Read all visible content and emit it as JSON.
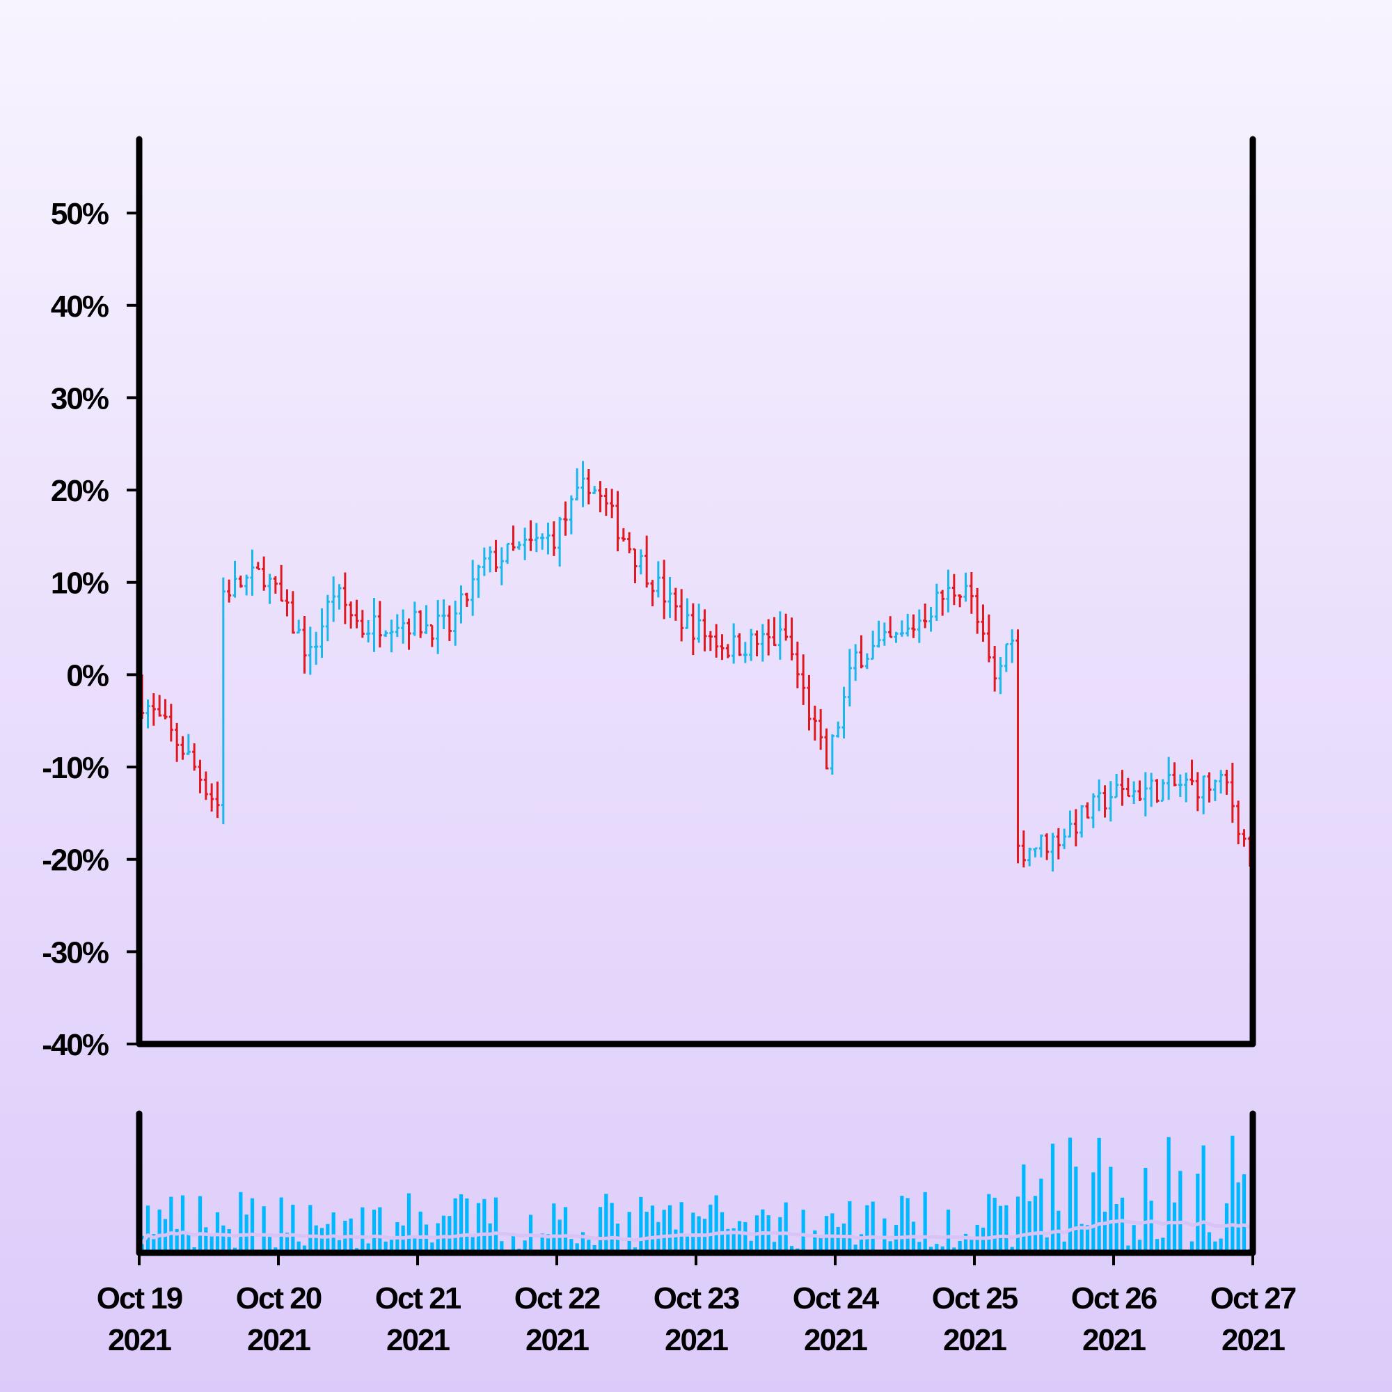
{
  "chart_data": {
    "type": "ohlc",
    "price_axis": {
      "ylim": [
        -40,
        58
      ],
      "ticks": [
        -40,
        -30,
        -20,
        -10,
        0,
        10,
        20,
        30,
        40,
        50
      ],
      "tick_labels": [
        "-40%",
        "-30%",
        "-20%",
        "-10%",
        "0%",
        "10%",
        "20%",
        "30%",
        "40%",
        "50%"
      ]
    },
    "date_axis": {
      "range": [
        "2021-10-19 00:00",
        "2021-10-27 00:00"
      ],
      "ticks": [
        "2021-10-19",
        "2021-10-20",
        "2021-10-21",
        "2021-10-22",
        "2021-10-23",
        "2021-10-24",
        "2021-10-25",
        "2021-10-26",
        "2021-10-27"
      ],
      "tick_labels": [
        [
          "Oct 19",
          "2021"
        ],
        [
          "Oct 20",
          "2021"
        ],
        [
          "Oct 21",
          "2021"
        ],
        [
          "Oct 22",
          "2021"
        ],
        [
          "Oct 23",
          "2021"
        ],
        [
          "Oct 24",
          "2021"
        ],
        [
          "Oct 25",
          "2021"
        ],
        [
          "Oct 26",
          "2021"
        ],
        [
          "Oct 27",
          "2021"
        ]
      ]
    },
    "bar_interval_hours": 1,
    "colors": {
      "up": "#1ab7ea",
      "down": "#e0181f",
      "volume": "#00b8ff",
      "volume_ma": "#d7c3f5",
      "axis": "#000000"
    },
    "price_path": [
      [
        "2021-10-19 00:00",
        -2
      ],
      [
        "2021-10-19 08:00",
        -8
      ],
      [
        "2021-10-19 14:00",
        -14
      ],
      [
        "2021-10-19 15:00",
        9
      ],
      [
        "2021-10-19 22:00",
        11
      ],
      [
        "2021-10-20 06:00",
        2
      ],
      [
        "2021-10-20 10:00",
        9
      ],
      [
        "2021-10-20 15:00",
        5
      ],
      [
        "2021-10-20 20:00",
        6
      ],
      [
        "2021-10-21 06:00",
        5
      ],
      [
        "2021-10-21 12:00",
        12
      ],
      [
        "2021-10-21 20:00",
        14
      ],
      [
        "2021-10-22 00:00",
        15
      ],
      [
        "2021-10-22 06:00",
        21
      ],
      [
        "2021-10-22 14:00",
        13
      ],
      [
        "2021-10-22 22:00",
        6
      ],
      [
        "2021-10-23 06:00",
        3
      ],
      [
        "2021-10-23 16:00",
        4
      ],
      [
        "2021-10-23 23:00",
        -10
      ],
      [
        "2021-10-24 04:00",
        2
      ],
      [
        "2021-10-24 12:00",
        4
      ],
      [
        "2021-10-24 18:00",
        8
      ],
      [
        "2021-10-24 23:00",
        10
      ],
      [
        "2021-10-25 04:00",
        -1
      ],
      [
        "2021-10-25 07:00",
        5
      ],
      [
        "2021-10-25 08:00",
        -19
      ],
      [
        "2021-10-25 14:00",
        -18
      ],
      [
        "2021-10-26 00:00",
        -13
      ],
      [
        "2021-10-26 12:00",
        -12
      ],
      [
        "2021-10-26 20:00",
        -12
      ],
      [
        "2021-10-27 00:00",
        -20
      ]
    ],
    "price_noise_pct": 1.4,
    "volume_level_low": 0.25,
    "volume_level_high": 0.5,
    "volume_shift_at": "2021-10-25 08:00",
    "volume_ma_window": 24
  }
}
